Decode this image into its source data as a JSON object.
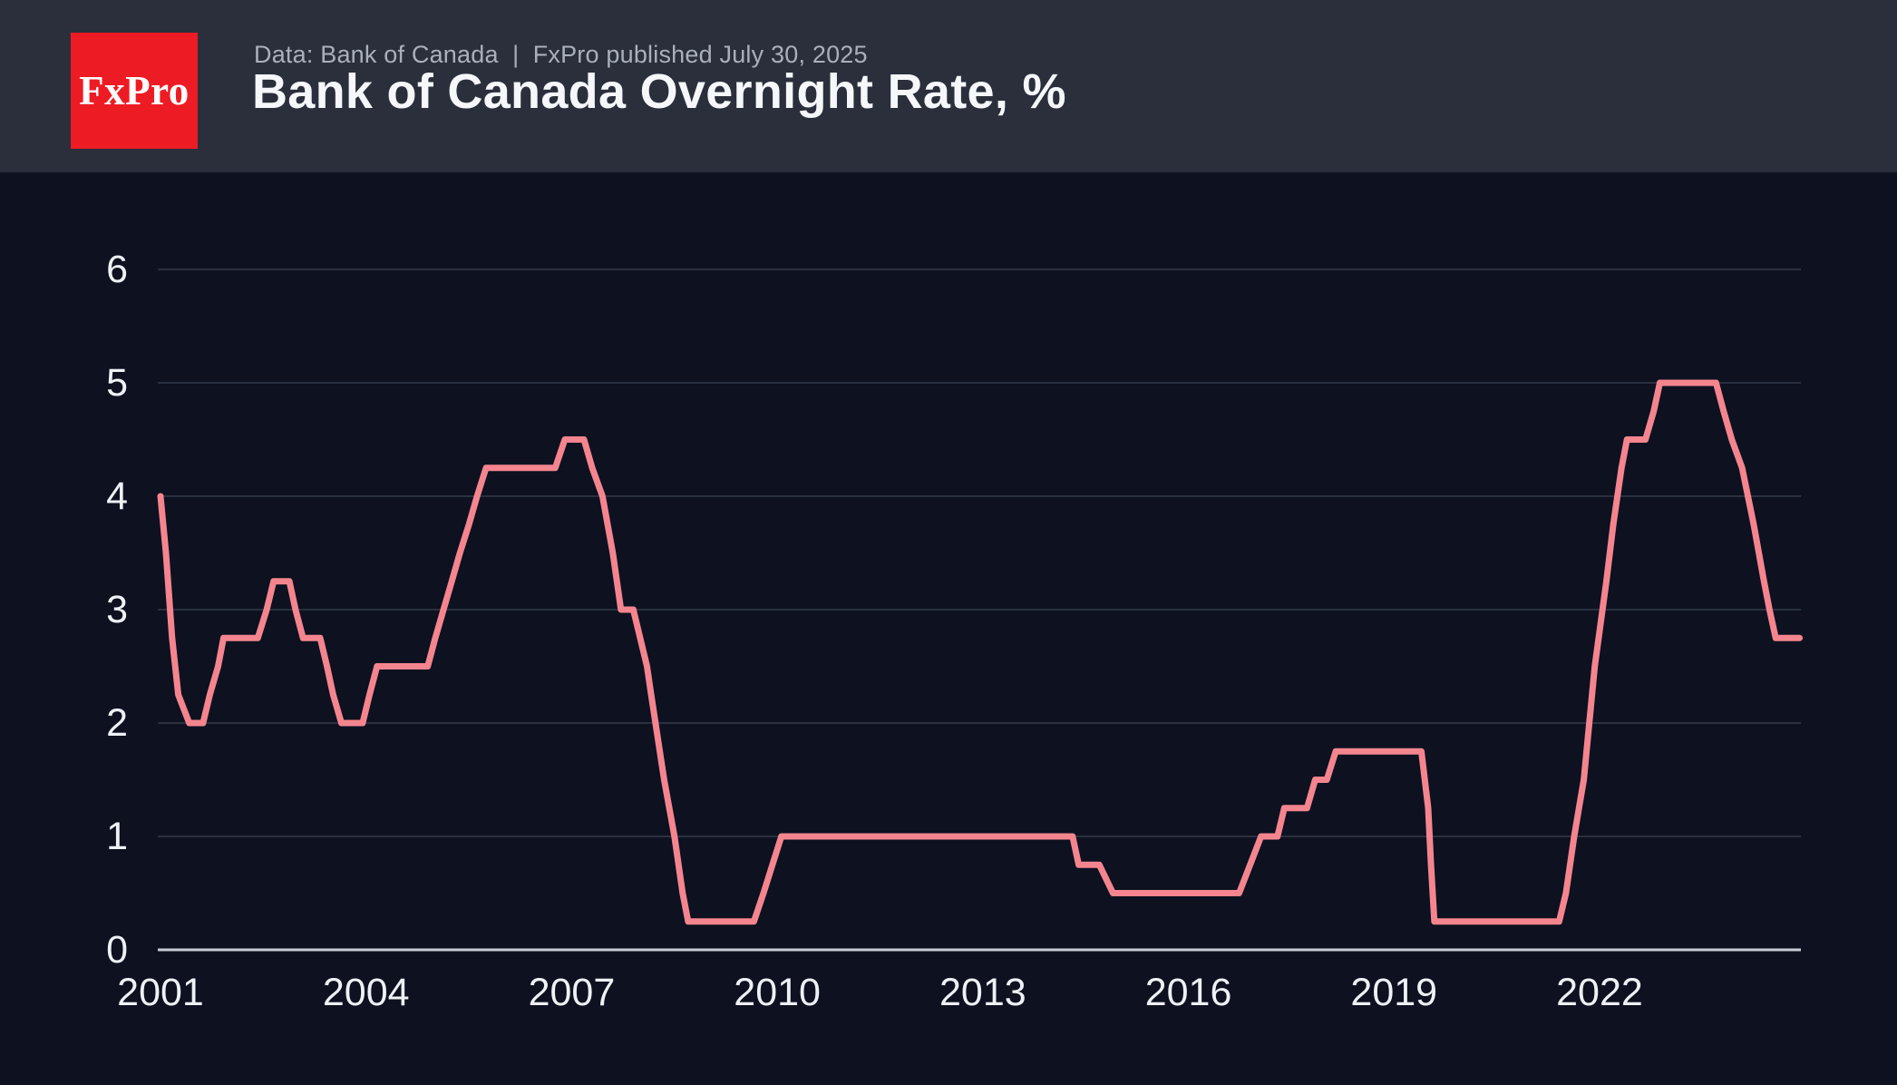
{
  "header": {
    "logo_text": "FxPro",
    "source_line": "Data: Bank of Canada  |  FxPro published July 30, 2025",
    "title": "Bank of Canada Overnight Rate, %"
  },
  "colors": {
    "header_bg": "#2b2f3b",
    "chart_bg": "#0d1120",
    "logo_red": "#ed1c24",
    "line_accent": "#f4858e",
    "gridline": "#2a3040",
    "zero_axis": "#c9cdd6",
    "tick_text": "#eef1f5",
    "caption_text": "#a9b0bc",
    "title_text": "#f5f7fa"
  },
  "chart_data": {
    "type": "line",
    "title": "Bank of Canada Overnight Rate, %",
    "xlabel": "",
    "ylabel": "",
    "x_ticks": [
      2001,
      2004,
      2007,
      2010,
      2013,
      2016,
      2019,
      2022
    ],
    "y_ticks": [
      0,
      1,
      2,
      3,
      4,
      5,
      6
    ],
    "xlim": [
      2001,
      2024.95
    ],
    "ylim": [
      0,
      6
    ],
    "grid": "horizontal",
    "legend": "none",
    "series": [
      {
        "name": "Overnight Rate %",
        "points": [
          [
            2001.0,
            4.0
          ],
          [
            2001.08,
            3.5
          ],
          [
            2001.17,
            2.75
          ],
          [
            2001.26,
            2.25
          ],
          [
            2001.42,
            2.0
          ],
          [
            2001.62,
            2.0
          ],
          [
            2001.72,
            2.25
          ],
          [
            2001.84,
            2.5
          ],
          [
            2001.92,
            2.75
          ],
          [
            2002.42,
            2.75
          ],
          [
            2002.55,
            3.0
          ],
          [
            2002.65,
            3.25
          ],
          [
            2002.88,
            3.25
          ],
          [
            2002.97,
            3.0
          ],
          [
            2003.08,
            2.75
          ],
          [
            2003.33,
            2.75
          ],
          [
            2003.43,
            2.5
          ],
          [
            2003.52,
            2.25
          ],
          [
            2003.64,
            2.0
          ],
          [
            2003.95,
            2.0
          ],
          [
            2004.05,
            2.25
          ],
          [
            2004.16,
            2.5
          ],
          [
            2004.9,
            2.5
          ],
          [
            2005.01,
            2.75
          ],
          [
            2005.13,
            3.0
          ],
          [
            2005.25,
            3.25
          ],
          [
            2005.37,
            3.5
          ],
          [
            2005.5,
            3.75
          ],
          [
            2005.62,
            4.0
          ],
          [
            2005.75,
            4.25
          ],
          [
            2006.76,
            4.25
          ],
          [
            2006.9,
            4.5
          ],
          [
            2007.18,
            4.5
          ],
          [
            2007.3,
            4.25
          ],
          [
            2007.45,
            4.0
          ],
          [
            2007.6,
            3.5
          ],
          [
            2007.72,
            3.0
          ],
          [
            2007.9,
            3.0
          ],
          [
            2008.1,
            2.5
          ],
          [
            2008.16,
            2.25
          ],
          [
            2008.35,
            1.5
          ],
          [
            2008.5,
            1.0
          ],
          [
            2008.62,
            0.5
          ],
          [
            2008.7,
            0.25
          ],
          [
            2009.66,
            0.25
          ],
          [
            2009.8,
            0.5
          ],
          [
            2009.93,
            0.75
          ],
          [
            2010.06,
            1.0
          ],
          [
            2014.31,
            1.0
          ],
          [
            2014.4,
            0.75
          ],
          [
            2014.7,
            0.75
          ],
          [
            2014.9,
            0.5
          ],
          [
            2016.74,
            0.5
          ],
          [
            2016.9,
            0.75
          ],
          [
            2017.06,
            1.0
          ],
          [
            2017.3,
            1.0
          ],
          [
            2017.4,
            1.25
          ],
          [
            2017.73,
            1.25
          ],
          [
            2017.85,
            1.5
          ],
          [
            2018.02,
            1.5
          ],
          [
            2018.15,
            1.75
          ],
          [
            2019.4,
            1.75
          ],
          [
            2019.5,
            1.25
          ],
          [
            2019.54,
            0.75
          ],
          [
            2019.59,
            0.25
          ],
          [
            2021.41,
            0.25
          ],
          [
            2021.51,
            0.5
          ],
          [
            2021.63,
            1.0
          ],
          [
            2021.77,
            1.5
          ],
          [
            2021.93,
            2.5
          ],
          [
            2022.1,
            3.25
          ],
          [
            2022.2,
            3.75
          ],
          [
            2022.32,
            4.25
          ],
          [
            2022.4,
            4.5
          ],
          [
            2022.67,
            4.5
          ],
          [
            2022.79,
            4.75
          ],
          [
            2022.88,
            5.0
          ],
          [
            2023.7,
            5.0
          ],
          [
            2023.81,
            4.75
          ],
          [
            2023.93,
            4.5
          ],
          [
            2024.08,
            4.25
          ],
          [
            2024.25,
            3.75
          ],
          [
            2024.4,
            3.25
          ],
          [
            2024.48,
            3.0
          ],
          [
            2024.57,
            2.75
          ],
          [
            2024.92,
            2.75
          ]
        ]
      }
    ]
  }
}
